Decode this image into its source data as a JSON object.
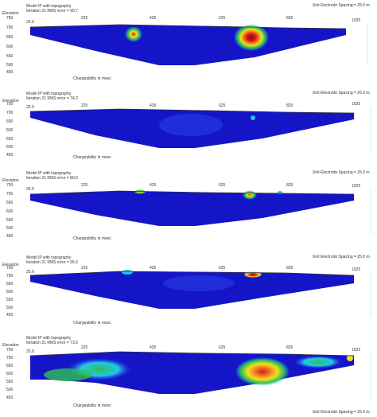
{
  "panels": [
    {
      "title": "Model IP with topography",
      "iteration": "Iteration 21 RMS error = 90.7",
      "unit_spacing": "Unit Electrode Spacing = 25.0 m.",
      "elevation_label": "Elevation",
      "start_label": "25.0",
      "end_label": "1025",
      "x_labels": [
        "225",
        "425",
        "625",
        "825"
      ],
      "y_labels": [
        "750",
        "700",
        "650",
        "600",
        "550",
        "500",
        "450"
      ],
      "caption": "Chargeability in msec"
    },
    {
      "title": "Model IP with topography",
      "iteration": "Iteration 21 RMS error = 74.2",
      "unit_spacing": "Unit Electrode Spacing = 25.0 m.",
      "elevation_label": "Elevation",
      "start_label": "25.0",
      "end_label": "1025",
      "x_labels": [
        "225",
        "425",
        "625",
        "825"
      ],
      "y_labels": [
        "750",
        "700",
        "650",
        "600",
        "550",
        "500",
        "450"
      ],
      "caption": "Chargeability in msec"
    },
    {
      "title": "Model IP with topography",
      "iteration": "Iteration 21 RMS error = 89.0",
      "unit_spacing": "Unit Electrode Spacing = 25.0 m.",
      "elevation_label": "Elevation",
      "start_label": "25.0",
      "end_label": "1025",
      "x_labels": [
        "225",
        "425",
        "625",
        "825"
      ],
      "y_labels": [
        "750",
        "700",
        "650",
        "600",
        "550",
        "500",
        "450"
      ],
      "caption": "Chargeability in msec"
    },
    {
      "title": "Model IP with topography",
      "iteration": "Iteration 21 RMS error = 95.6",
      "unit_spacing": "Unit Electrode Spacing = 25.0 m.",
      "elevation_label": "Elevation",
      "start_label": "25.0",
      "end_label": "1025",
      "x_labels": [
        "225",
        "425",
        "625",
        "825"
      ],
      "y_labels": [
        "750",
        "700",
        "650",
        "600",
        "550",
        "500",
        "450"
      ],
      "caption": "Chargeability in msec"
    },
    {
      "title": "Model IP with topography",
      "iteration": "Iteration 21 RMS error = 73.6",
      "unit_spacing": "Unit Electrode Spacing = 25.0 m.",
      "elevation_label": "Elevation",
      "start_label": "25.0",
      "end_label": "1025",
      "x_labels": [
        "225",
        "425",
        "625",
        "825"
      ],
      "y_labels": [
        "750",
        "700",
        "650",
        "600",
        "550",
        "500",
        "450"
      ],
      "caption": "Chargeability in msec"
    }
  ],
  "colors": {
    "deep_blue": "#1515c8",
    "mid_blue": "#2a44e8",
    "cyan": "#20c8e8",
    "green": "#30c050",
    "yellow": "#f0e020",
    "orange": "#f08020",
    "red": "#d81818",
    "maroon": "#7a1010"
  }
}
